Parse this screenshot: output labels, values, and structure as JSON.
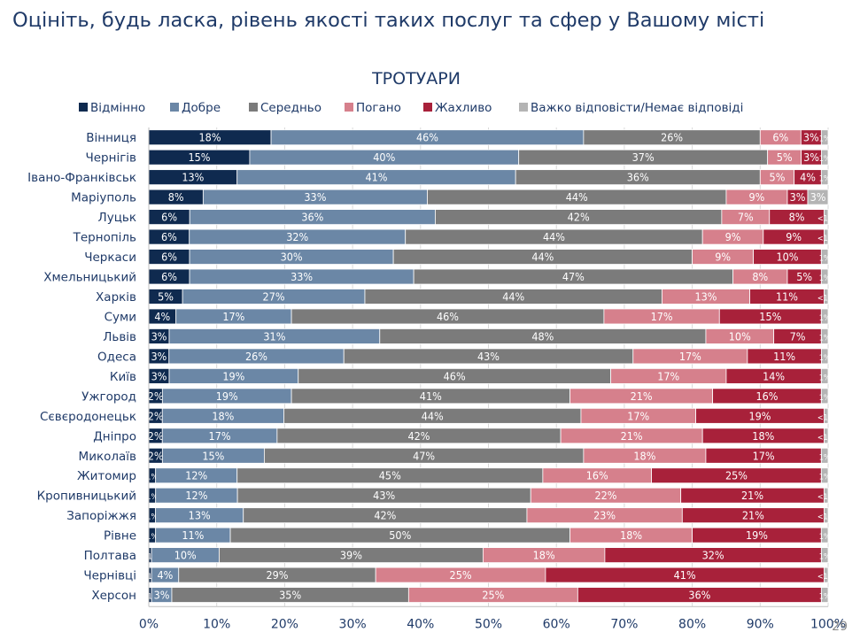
{
  "page": {
    "title": "Оцініть, будь ласка, рівень якості таких послуг та сфер у Вашому місті",
    "page_number": "29"
  },
  "chart_data": {
    "type": "bar",
    "orientation": "horizontal",
    "stacked": true,
    "title": "ТРОТУАРИ",
    "xlim": [
      0,
      100
    ],
    "x_ticks": [
      "0%",
      "10%",
      "20%",
      "30%",
      "40%",
      "50%",
      "60%",
      "70%",
      "80%",
      "90%",
      "100%"
    ],
    "legend_position": "top",
    "categories": [
      "Вінниця",
      "Чернігів",
      "Івано-Франківськ",
      "Маріуполь",
      "Луцьк",
      "Тернопіль",
      "Черкаси",
      "Хмельницький",
      "Харків",
      "Суми",
      "Львів",
      "Одеса",
      "Київ",
      "Ужгород",
      "Сєвєродонецьк",
      "Дніпро",
      "Миколаїв",
      "Житомир",
      "Кропивницький",
      "Запоріжжя",
      "Рівне",
      "Полтава",
      "Чернівці",
      "Херсон"
    ],
    "series": [
      {
        "name": "Відмінно",
        "color": "#0f2a4f",
        "values": [
          18,
          15,
          13,
          8,
          6,
          6,
          6,
          6,
          5,
          4,
          3,
          3,
          3,
          2,
          2,
          2,
          2,
          1,
          1,
          1,
          1,
          0.4,
          0.4,
          0.4
        ],
        "labels": [
          "18%",
          "15%",
          "13%",
          "8%",
          "6%",
          "6%",
          "6%",
          "6%",
          "5%",
          "4%",
          "3%",
          "3%",
          "3%",
          "2%",
          "2%",
          "2%",
          "2%",
          "1%",
          "1%",
          "1%",
          "1%",
          "<1%",
          "<1%",
          "<1%"
        ]
      },
      {
        "name": "Добре",
        "color": "#6b87a6",
        "values": [
          46,
          40,
          41,
          33,
          36,
          32,
          30,
          33,
          27,
          17,
          31,
          26,
          19,
          19,
          18,
          17,
          15,
          12,
          12,
          13,
          11,
          10,
          4,
          3
        ],
        "labels": [
          "46%",
          "40%",
          "41%",
          "33%",
          "36%",
          "32%",
          "30%",
          "33%",
          "27%",
          "17%",
          "31%",
          "26%",
          "19%",
          "19%",
          "18%",
          "17%",
          "15%",
          "12%",
          "12%",
          "13%",
          "11%",
          "10%",
          "4%",
          "3%"
        ]
      },
      {
        "name": "Середньо",
        "color": "#7b7b7b",
        "values": [
          26,
          37,
          36,
          44,
          42,
          44,
          44,
          47,
          44,
          46,
          48,
          43,
          46,
          41,
          44,
          42,
          47,
          45,
          43,
          42,
          50,
          39,
          29,
          35
        ],
        "labels": [
          "26%",
          "37%",
          "36%",
          "44%",
          "42%",
          "44%",
          "44%",
          "47%",
          "44%",
          "46%",
          "48%",
          "43%",
          "46%",
          "41%",
          "44%",
          "42%",
          "47%",
          "45%",
          "43%",
          "42%",
          "50%",
          "39%",
          "29%",
          "35%"
        ]
      },
      {
        "name": "Погано",
        "color": "#d6808c",
        "values": [
          6,
          5,
          5,
          9,
          7,
          9,
          9,
          8,
          13,
          17,
          10,
          17,
          17,
          21,
          17,
          21,
          18,
          16,
          22,
          23,
          18,
          18,
          25,
          25
        ],
        "labels": [
          "6%",
          "5%",
          "5%",
          "9%",
          "7%",
          "9%",
          "9%",
          "8%",
          "13%",
          "17%",
          "10%",
          "17%",
          "17%",
          "21%",
          "17%",
          "21%",
          "18%",
          "16%",
          "22%",
          "23%",
          "18%",
          "18%",
          "25%",
          "25%"
        ]
      },
      {
        "name": "Жахливо",
        "color": "#a8213a",
        "values": [
          3,
          3,
          4,
          3,
          8,
          9,
          10,
          5,
          11,
          15,
          7,
          11,
          14,
          16,
          19,
          18,
          17,
          25,
          21,
          21,
          19,
          32,
          41,
          36
        ],
        "labels": [
          "3%",
          "3%",
          "4%",
          "3%",
          "8%",
          "9%",
          "10%",
          "5%",
          "11%",
          "15%",
          "7%",
          "11%",
          "14%",
          "16%",
          "19%",
          "18%",
          "17%",
          "25%",
          "21%",
          "21%",
          "19%",
          "32%",
          "41%",
          "36%"
        ]
      },
      {
        "name": "Важко відповісти/Немає відповіді",
        "color": "#b4b4b4",
        "values": [
          1,
          1,
          1,
          3,
          0.6,
          0.6,
          1,
          1,
          0.6,
          1,
          1,
          1,
          1,
          1,
          0.6,
          0.6,
          1,
          1,
          0.6,
          0.6,
          1,
          1,
          0.6,
          1
        ],
        "labels": [
          "1%",
          "1%",
          "1%",
          "3%",
          "<1%",
          "<1%",
          "1%",
          "1%",
          "<1%",
          "1%",
          "1%",
          "1%",
          "1%",
          "1%",
          "<1%",
          "<1%",
          "1%",
          "1%",
          "<1%",
          "<1%",
          "1%",
          "1%",
          "<1%",
          "1%"
        ]
      }
    ]
  }
}
